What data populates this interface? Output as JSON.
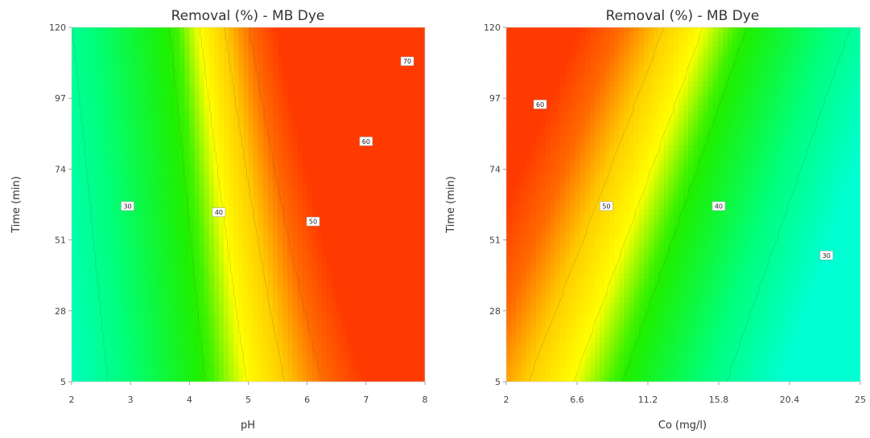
{
  "chart_data": [
    {
      "type": "heatmap",
      "subtype": "contour",
      "title": "Removal (%) - MB Dye",
      "xlabel": "pH",
      "ylabel": "Time (min)",
      "xlim": [
        2,
        8
      ],
      "ylim": [
        5,
        120
      ],
      "x_ticks": [
        "2",
        "3",
        "4",
        "5",
        "6",
        "7",
        "8"
      ],
      "y_ticks": [
        "5",
        "28",
        "51",
        "74",
        "97",
        "120"
      ],
      "colorscale": [
        "#00ffd2",
        "#00ff7a",
        "#1ef000",
        "#ffff00",
        "#ffcc00",
        "#ff6a00",
        "#ff3a00"
      ],
      "contours": [
        {
          "level": "30",
          "x": 2.95,
          "y": 62
        },
        {
          "level": "40",
          "x": 4.5,
          "y": 60
        },
        {
          "level": "50",
          "x": 6.1,
          "y": 57
        },
        {
          "level": "60",
          "x": 7.0,
          "y": 83
        },
        {
          "level": "70",
          "x": 7.7,
          "y": 109
        }
      ]
    },
    {
      "type": "heatmap",
      "subtype": "contour",
      "title": "Removal (%) - MB Dye",
      "xlabel": "Co (mg/l)",
      "ylabel": "Time (min)",
      "xlim": [
        2,
        25
      ],
      "ylim": [
        5,
        120
      ],
      "x_ticks": [
        "2",
        "6.6",
        "11.2",
        "15.8",
        "20.4",
        "25"
      ],
      "y_ticks": [
        "5",
        "28",
        "51",
        "74",
        "97",
        "120"
      ],
      "colorscale": [
        "#00ffd2",
        "#00ff7a",
        "#1ef000",
        "#ffff00",
        "#ffcc00",
        "#ff6a00",
        "#ff3a00"
      ],
      "contours": [
        {
          "level": "60",
          "x": 4.2,
          "y": 95
        },
        {
          "level": "50",
          "x": 8.5,
          "y": 62
        },
        {
          "level": "40",
          "x": 15.8,
          "y": 62
        },
        {
          "level": "30",
          "x": 22.8,
          "y": 46
        }
      ]
    }
  ]
}
